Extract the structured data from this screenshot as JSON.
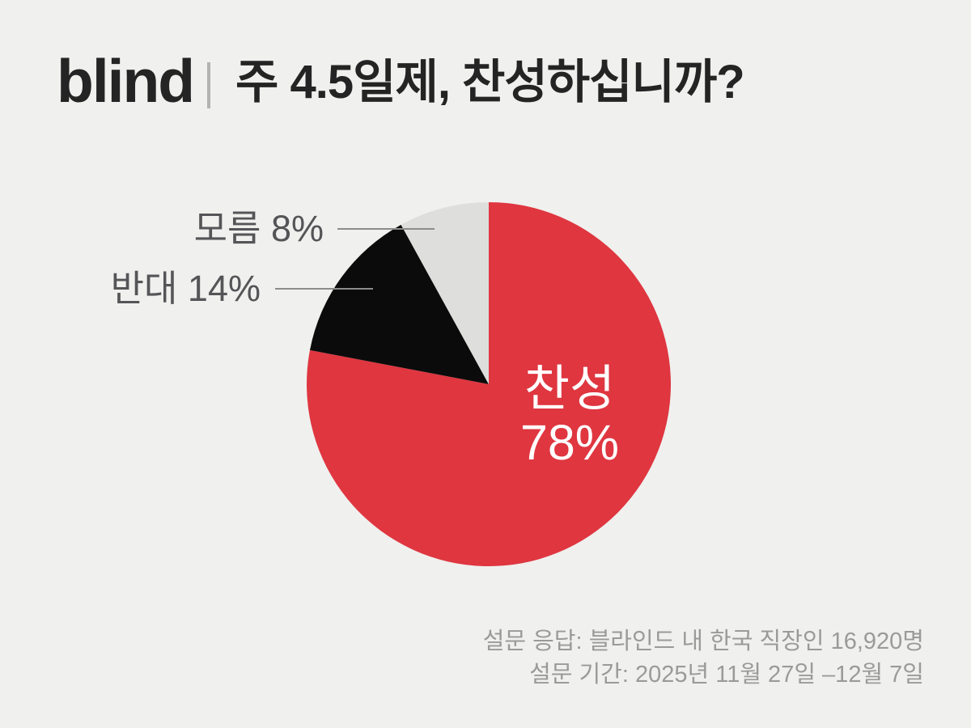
{
  "header": {
    "logo_text": "blind",
    "title": "주 4.5일제, 찬성하십니까?"
  },
  "chart_data": {
    "type": "pie",
    "title": "주 4.5일제, 찬성하십니까?",
    "unit": "%",
    "start_angle_deg": 0,
    "direction": "clockwise",
    "legend": "none",
    "slices": [
      {
        "name": "agree",
        "label": "찬성",
        "value": 78,
        "color": "#df3640",
        "label_placement": "inside",
        "label_color": "#ffffff"
      },
      {
        "name": "oppose",
        "label": "반대",
        "value": 14,
        "color": "#0b0b0b",
        "label_placement": "callout-left"
      },
      {
        "name": "unknown",
        "label": "모름",
        "value": 8,
        "color": "#dededd",
        "label_placement": "callout-left"
      }
    ]
  },
  "labels": {
    "agree_name": "찬성",
    "agree_value": "78%",
    "oppose_callout": "반대 14%",
    "unknown_callout": "모름 8%"
  },
  "footer": {
    "line1": "설문 응답: 블라인드 내 한국 직장인 16,920명",
    "line2": "설문 기간: 2025년 11월 27일 –12월 7일"
  },
  "colors": {
    "background": "#f0f0ee",
    "ink": "#242424",
    "divider": "#b3b3b3",
    "callout_text": "#555558",
    "leader_line": "#8c8c8c",
    "footer_text": "#9a9a98",
    "agree_red": "#df3640",
    "oppose_black": "#0b0b0b",
    "unknown_gray": "#dededd"
  }
}
